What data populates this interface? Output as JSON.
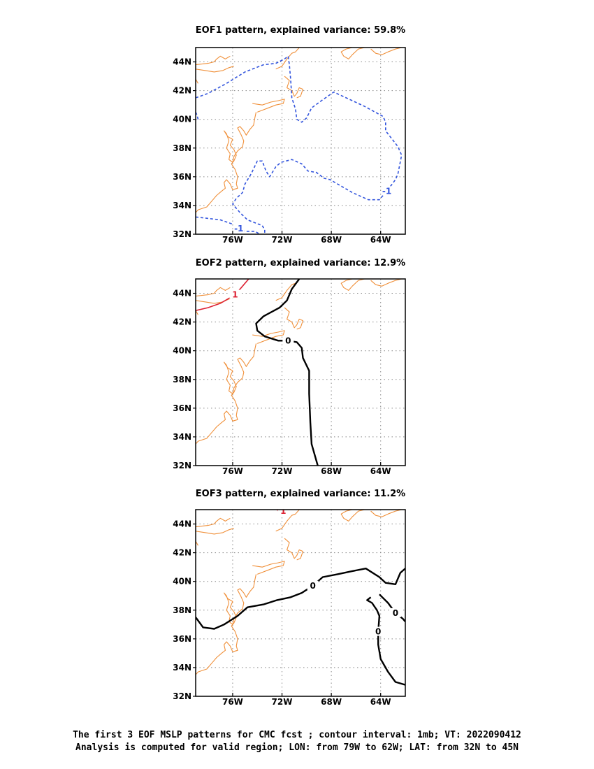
{
  "chart_data": [
    {
      "type": "contour_map",
      "title": "EOF1 pattern, explained variance: 59.8%",
      "x_ticks": [
        "76W",
        "72W",
        "68W",
        "64W"
      ],
      "y_ticks": [
        "44N",
        "42N",
        "40N",
        "38N",
        "36N",
        "34N",
        "32N"
      ],
      "xlim": [
        -79,
        -62
      ],
      "ylim": [
        32,
        45
      ],
      "grid": true,
      "contours": [
        {
          "value": -1,
          "label": "-1",
          "style": "dashed",
          "color": "#3355dd",
          "lines": [
            [
              [
                -79,
                41.5
              ],
              [
                -78,
                41.8
              ],
              [
                -76.5,
                42.5
              ],
              [
                -75,
                43.3
              ],
              [
                -73.5,
                43.8
              ],
              [
                -72.5,
                43.9
              ],
              [
                -71.8,
                44.2
              ],
              [
                -71.5,
                44.4
              ],
              [
                -71.4,
                43.8
              ],
              [
                -71.3,
                42.8
              ],
              [
                -71.2,
                41.5
              ],
              [
                -70.9,
                40.7
              ],
              [
                -70.8,
                40.0
              ],
              [
                -70.4,
                39.8
              ],
              [
                -70,
                40.1
              ],
              [
                -69.6,
                40.8
              ],
              [
                -68.8,
                41.3
              ],
              [
                -67.8,
                41.9
              ],
              [
                -66.8,
                41.5
              ],
              [
                -65.3,
                40.9
              ],
              [
                -63.8,
                40.2
              ],
              [
                -63.6,
                39.8
              ],
              [
                -63.6,
                39.2
              ],
              [
                -62.6,
                38.1
              ],
              [
                -62.3,
                37.5
              ],
              [
                -62.6,
                36.2
              ],
              [
                -62.8,
                35.8
              ],
              [
                -63.5,
                35.0
              ],
              [
                -64.1,
                34.4
              ],
              [
                -65,
                34.4
              ],
              [
                -66.3,
                34.9
              ],
              [
                -67.3,
                35.4
              ],
              [
                -68.1,
                35.8
              ],
              [
                -68.6,
                35.9
              ],
              [
                -69.2,
                36.3
              ],
              [
                -69.9,
                36.4
              ],
              [
                -70.4,
                36.9
              ],
              [
                -71.2,
                37.2
              ],
              [
                -72.1,
                37.0
              ],
              [
                -72.5,
                36.7
              ],
              [
                -73,
                36.0
              ],
              [
                -73.3,
                36.4
              ],
              [
                -73.6,
                37.1
              ],
              [
                -74,
                37.1
              ],
              [
                -74.5,
                36.2
              ],
              [
                -75,
                35.5
              ],
              [
                -75.2,
                34.9
              ],
              [
                -75.7,
                34.5
              ],
              [
                -76,
                34.1
              ],
              [
                -75.4,
                33.5
              ],
              [
                -74.8,
                33.0
              ],
              [
                -73.6,
                32.6
              ],
              [
                -73.4,
                32.3
              ],
              [
                -73.4,
                32
              ]
            ]
          ]
        },
        {
          "value": -1,
          "label": "-1",
          "style": "dashed",
          "color": "#3355dd",
          "lines": [
            [
              [
                -79,
                33.2
              ],
              [
                -78,
                33.1
              ],
              [
                -77,
                33.0
              ],
              [
                -76,
                32.7
              ],
              [
                -75.5,
                32.4
              ],
              [
                -75,
                32.2
              ],
              [
                -74.2,
                32.2
              ],
              [
                -73.8,
                32
              ]
            ]
          ]
        },
        {
          "value": -1,
          "label": "",
          "style": "dashed",
          "color": "#3355dd",
          "lines": [
            [
              [
                -78.8,
                40.0
              ],
              [
                -78.9,
                40.3
              ],
              [
                -79,
                40.5
              ]
            ]
          ]
        }
      ]
    },
    {
      "type": "contour_map",
      "title": "EOF2 pattern, explained variance: 12.9%",
      "x_ticks": [
        "76W",
        "72W",
        "68W",
        "64W"
      ],
      "y_ticks": [
        "44N",
        "42N",
        "40N",
        "38N",
        "36N",
        "34N",
        "32N"
      ],
      "xlim": [
        -79,
        -62
      ],
      "ylim": [
        32,
        45
      ],
      "grid": true,
      "contours": [
        {
          "value": 1,
          "label": "1",
          "style": "solid",
          "color": "#dd2233",
          "lines": [
            [
              [
                -79,
                42.8
              ],
              [
                -78,
                43.0
              ],
              [
                -77,
                43.3
              ],
              [
                -75.8,
                43.9
              ],
              [
                -75.2,
                44.5
              ],
              [
                -74.7,
                45
              ]
            ]
          ]
        },
        {
          "value": 0,
          "label": "0",
          "style": "solid",
          "color": "#000000",
          "lines": [
            [
              [
                -70.6,
                45
              ],
              [
                -71.2,
                44.3
              ],
              [
                -71.6,
                43.5
              ],
              [
                -72.2,
                43.0
              ],
              [
                -73.5,
                42.4
              ],
              [
                -74.1,
                41.9
              ],
              [
                -74,
                41.4
              ],
              [
                -73.4,
                41.0
              ],
              [
                -72.3,
                40.7
              ],
              [
                -71.5,
                40.7
              ],
              [
                -70.8,
                40.6
              ],
              [
                -70.4,
                40.2
              ],
              [
                -70.3,
                39.5
              ],
              [
                -69.8,
                38.6
              ],
              [
                -69.8,
                37.0
              ],
              [
                -69.7,
                35.0
              ],
              [
                -69.6,
                33.5
              ],
              [
                -69.1,
                32
              ]
            ]
          ]
        }
      ]
    },
    {
      "type": "contour_map",
      "title": "EOF3 pattern, explained variance: 11.2%",
      "x_ticks": [
        "76W",
        "72W",
        "68W",
        "64W"
      ],
      "y_ticks": [
        "44N",
        "42N",
        "40N",
        "38N",
        "36N",
        "34N",
        "32N"
      ],
      "xlim": [
        -79,
        -62
      ],
      "ylim": [
        32,
        45
      ],
      "grid": true,
      "contours": [
        {
          "value": 1,
          "label": "1",
          "style": "solid",
          "color": "#dd2233",
          "lines": [
            [
              [
                -72.4,
                45
              ],
              [
                -72.2,
                44.8
              ],
              [
                -71.9,
                44.9
              ],
              [
                -71.7,
                45
              ]
            ]
          ]
        },
        {
          "value": 0,
          "label": "0",
          "style": "solid",
          "color": "#000000",
          "lines": [
            [
              [
                -79,
                37.5
              ],
              [
                -78.4,
                36.8
              ],
              [
                -77.5,
                36.7
              ],
              [
                -76.7,
                37.0
              ],
              [
                -75.6,
                37.6
              ],
              [
                -74.8,
                38.2
              ],
              [
                -73.5,
                38.4
              ],
              [
                -72.4,
                38.7
              ],
              [
                -71.3,
                38.9
              ],
              [
                -70.4,
                39.2
              ],
              [
                -69.5,
                39.7
              ],
              [
                -68.7,
                40.3
              ],
              [
                -67.5,
                40.5
              ],
              [
                -66.4,
                40.7
              ],
              [
                -65.2,
                40.9
              ],
              [
                -64.1,
                40.3
              ],
              [
                -63.6,
                39.9
              ],
              [
                -62.8,
                39.8
              ],
              [
                -62.4,
                40.6
              ],
              [
                -62,
                40.9
              ]
            ]
          ]
        },
        {
          "value": 0,
          "label": "0",
          "style": "solid",
          "color": "#000000",
          "lines": [
            [
              [
                -64.8,
                38.9
              ],
              [
                -65.1,
                38.7
              ],
              [
                -64.7,
                38.5
              ],
              [
                -64.3,
                38.0
              ],
              [
                -64.1,
                37.6
              ],
              [
                -64.2,
                36.5
              ],
              [
                -64.2,
                35.6
              ],
              [
                -64.0,
                34.6
              ],
              [
                -63.4,
                33.7
              ],
              [
                -62.8,
                33.0
              ],
              [
                -62,
                32.8
              ]
            ]
          ]
        },
        {
          "value": 0,
          "label": "0",
          "style": "solid",
          "color": "#000000",
          "lines": [
            [
              [
                -64.1,
                39.1
              ],
              [
                -63.4,
                38.5
              ],
              [
                -62.8,
                37.8
              ],
              [
                -62.2,
                37.4
              ],
              [
                -62,
                37.2
              ]
            ]
          ]
        }
      ]
    }
  ],
  "captions": {
    "line1": "The first 3 EOF MSLP patterns for CMC fcst ; contour interval: 1mb; VT: 2022090412",
    "line2": "Analysis is computed for valid region; LON: from 79W to 62W; LAT: from 32N to 45N"
  },
  "colors": {
    "coastline": "#f0903a",
    "grid": "#888888",
    "negative_contour": "#3355dd",
    "positive_contour": "#dd2233",
    "zero_contour": "#000000"
  }
}
